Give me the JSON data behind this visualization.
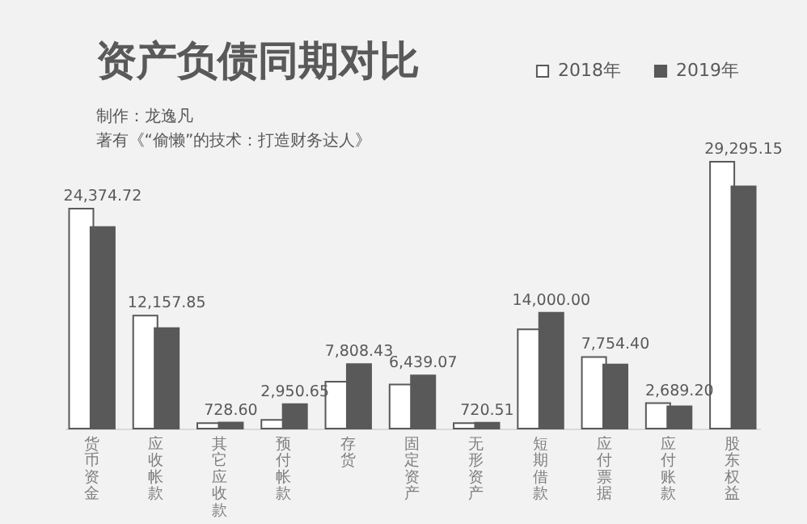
{
  "chart_data": {
    "type": "bar",
    "title": "资产负债同期对比",
    "subtitle": "制作：龙逸凡",
    "annotations": [
      "著有《“偷懒”的技术：打造财务达人》"
    ],
    "categories": [
      "货币资金",
      "应收帐款",
      "其它应收款",
      "预付帐款",
      "存货",
      "固定资产",
      "无形资产",
      "短期借款",
      "应付票据",
      "应付账款",
      "股东权益"
    ],
    "series": [
      {
        "name": "2018年",
        "color": "#ffffff",
        "values": [
          26600,
          13660,
          650,
          1040,
          5660,
          5330,
          650,
          12000,
          8660,
          3080,
          32270
        ]
      },
      {
        "name": "2019年",
        "color": "#595959",
        "values": [
          24374.72,
          12157.85,
          728.6,
          2950.65,
          7808.43,
          6439.07,
          720.51,
          14000,
          7754.4,
          2689.2,
          29295.15
        ],
        "value_labels": [
          "24,374.72",
          "12,157.85",
          "728.60",
          "2,950.65",
          "7,808.43",
          "6,439.07",
          "720.51",
          "14,000.00",
          "7,754.40",
          "2,689.20",
          "29,295.15"
        ]
      }
    ],
    "legend": "top right",
    "grid": false
  }
}
